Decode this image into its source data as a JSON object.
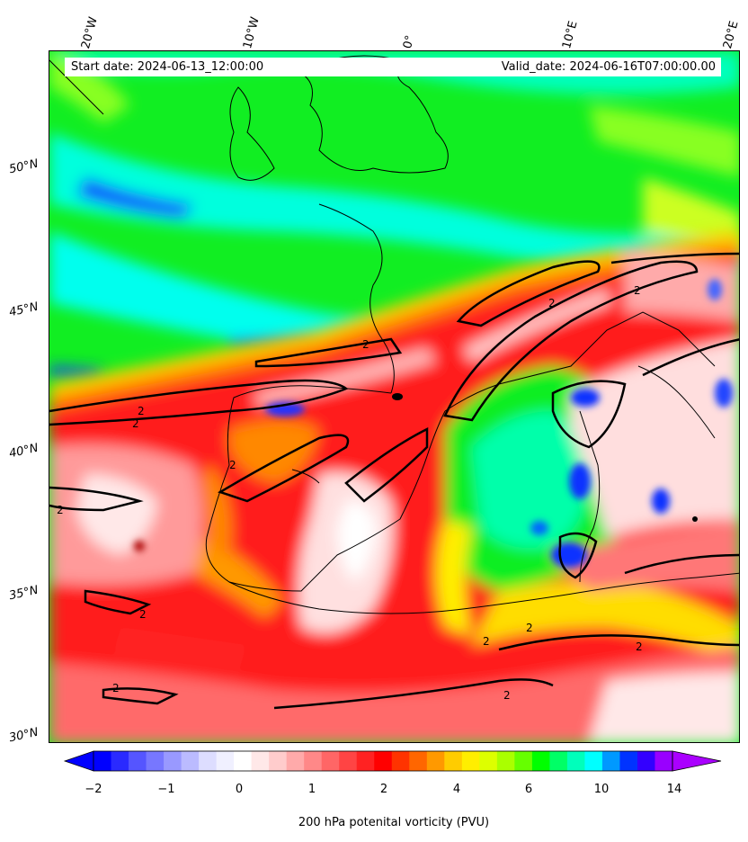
{
  "map": {
    "start_date": "Start date: 2024-06-13_12:00:00",
    "valid_date": "Valid_date: 2024-06-16T07:00:00.00",
    "lon_labels": [
      "20°W",
      "10°W",
      "0°",
      "10°E",
      "20°E"
    ],
    "lat_labels": [
      "50°N",
      "45°N",
      "40°N",
      "35°N",
      "30°N"
    ],
    "contour_level": "2",
    "colorbar": {
      "label": "200 hPa potenital vorticity (PVU)",
      "ticks": [
        "−2",
        "−1",
        "0",
        "1",
        "2",
        "4",
        "6",
        "10",
        "14"
      ],
      "colors": [
        "#0000ff",
        "#2a2aff",
        "#5555ff",
        "#7777ff",
        "#9999ff",
        "#bbbbff",
        "#ddddff",
        "#f0f0ff",
        "#ffffff",
        "#ffe8e8",
        "#ffcccc",
        "#ffaaaa",
        "#ff8888",
        "#ff6666",
        "#ff4444",
        "#ff2222",
        "#ff0000",
        "#ff3300",
        "#ff6600",
        "#ff9900",
        "#ffcc00",
        "#ffee00",
        "#ddff00",
        "#aaff00",
        "#66ff00",
        "#00ff00",
        "#00ff66",
        "#00ffbb",
        "#00ffff",
        "#0099ff",
        "#0033ff",
        "#3300ff",
        "#9900ff"
      ],
      "under_color": "#0000ff",
      "over_color": "#aa00ff"
    },
    "colors": {
      "background_green": "#11ee22",
      "cyan": "#00ffee",
      "red": "#ff1a1a",
      "light_red": "#ff8a8a",
      "orange": "#ff8800",
      "yellow": "#ffee00",
      "blue": "#2233ff",
      "coast": "#000000"
    }
  }
}
